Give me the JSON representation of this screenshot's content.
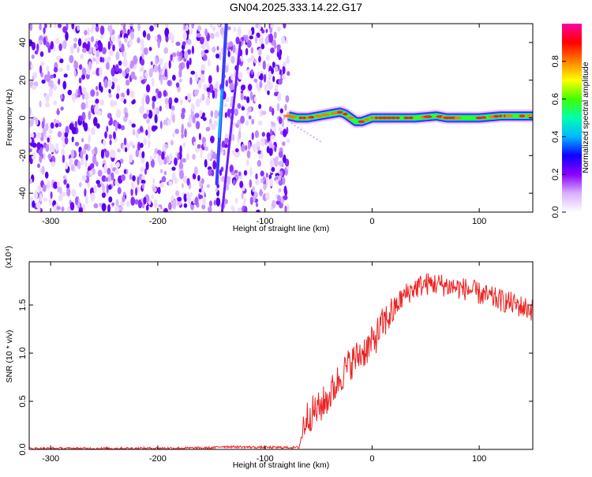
{
  "title": "GN04.2025.333.14.22.G17",
  "chart_data": [
    {
      "type": "heatmap",
      "xlabel": "Height of straight line (km)",
      "ylabel": "Frequency (Hz)",
      "xlim": [
        -320,
        150
      ],
      "ylim": [
        -50,
        50
      ],
      "xticks": [
        -300,
        -200,
        -100,
        0,
        100
      ],
      "yticks": [
        -40,
        -20,
        0,
        20,
        40
      ],
      "colorbar": {
        "label": "Normalized spectral amplitude",
        "range": [
          0,
          1
        ],
        "ticks": [
          0.0,
          0.2,
          0.4,
          0.6,
          0.8
        ],
        "tick_labels": [
          "0.0",
          "0.2",
          "0.4",
          "0.6",
          "0.8"
        ],
        "colors": [
          "#ffffff",
          "#d8b0ff",
          "#8a00ff",
          "#1000ff",
          "#00b8ff",
          "#00ffb0",
          "#40ff00",
          "#ffff00",
          "#ff8000",
          "#ff0000",
          "#ff00a0"
        ]
      },
      "noise_region_x": [
        -320,
        -78
      ],
      "signal_track": {
        "x": [
          -78,
          -70,
          -60,
          -50,
          -40,
          -30,
          -25,
          -20,
          -15,
          -10,
          -5,
          0,
          20,
          40,
          60,
          70,
          80,
          100,
          120,
          140,
          150
        ],
        "y": [
          1,
          0,
          0,
          1,
          2,
          3,
          2,
          0,
          -2,
          -2,
          -1,
          0,
          0,
          0,
          1,
          0,
          0,
          0,
          1,
          1,
          1
        ]
      },
      "whistler_tracks": [
        {
          "x": [
            -145,
            -136
          ],
          "y": [
            -35,
            50
          ]
        },
        {
          "x": [
            -140,
            -123
          ],
          "y": [
            -50,
            40
          ]
        }
      ]
    },
    {
      "type": "line",
      "xlabel": "Height of straight line (km)",
      "ylabel": "SNR (10 * v/v)",
      "multiplier": "(x10⁴)",
      "xlim": [
        -320,
        150
      ],
      "ylim": [
        0,
        1.95
      ],
      "xticks": [
        -300,
        -200,
        -100,
        0,
        100
      ],
      "yticks": [
        0.0,
        0.5,
        1.0,
        1.5
      ],
      "ytick_labels": [
        "0.0",
        "0.5",
        "1.0",
        "1.5"
      ],
      "color": "#ee2222",
      "series": [
        {
          "x": [
            -320,
            -250,
            -150,
            -140,
            -100,
            -68,
            -64,
            -60,
            -50,
            -40,
            -30,
            -20,
            -10,
            0,
            10,
            20,
            30,
            40,
            50,
            60,
            70,
            80,
            90,
            100,
            110,
            120,
            130,
            140,
            150
          ],
          "values": [
            0.01,
            0.01,
            0.015,
            0.03,
            0.02,
            0.02,
            0.25,
            0.35,
            0.42,
            0.55,
            0.75,
            0.9,
            1.0,
            1.1,
            1.3,
            1.45,
            1.6,
            1.68,
            1.72,
            1.72,
            1.7,
            1.68,
            1.66,
            1.62,
            1.58,
            1.55,
            1.52,
            1.48,
            1.45
          ]
        }
      ]
    }
  ]
}
